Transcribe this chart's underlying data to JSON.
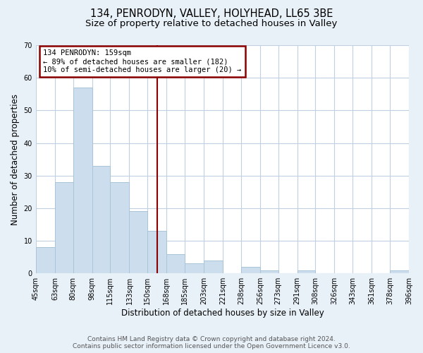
{
  "title": "134, PENRODYN, VALLEY, HOLYHEAD, LL65 3BE",
  "subtitle": "Size of property relative to detached houses in Valley",
  "xlabel": "Distribution of detached houses by size in Valley",
  "ylabel": "Number of detached properties",
  "bins": [
    45,
    63,
    80,
    98,
    115,
    133,
    150,
    168,
    185,
    203,
    221,
    238,
    256,
    273,
    291,
    308,
    326,
    343,
    361,
    378,
    396
  ],
  "bin_labels": [
    "45sqm",
    "63sqm",
    "80sqm",
    "98sqm",
    "115sqm",
    "133sqm",
    "150sqm",
    "168sqm",
    "185sqm",
    "203sqm",
    "221sqm",
    "238sqm",
    "256sqm",
    "273sqm",
    "291sqm",
    "308sqm",
    "326sqm",
    "343sqm",
    "361sqm",
    "378sqm",
    "396sqm"
  ],
  "counts": [
    8,
    28,
    57,
    33,
    28,
    19,
    13,
    6,
    3,
    4,
    0,
    2,
    1,
    0,
    1,
    0,
    0,
    0,
    0,
    1
  ],
  "bar_color": "#ccdded",
  "bar_edge_color": "#aac4d8",
  "vline_x": 159,
  "vline_color": "#8b0000",
  "annotation_title": "134 PENRODYN: 159sqm",
  "annotation_line1": "← 89% of detached houses are smaller (182)",
  "annotation_line2": "10% of semi-detached houses are larger (20) →",
  "annotation_box_color": "#8b0000",
  "annotation_bg": "#ffffff",
  "ylim": [
    0,
    70
  ],
  "yticks": [
    0,
    10,
    20,
    30,
    40,
    50,
    60,
    70
  ],
  "footer1": "Contains HM Land Registry data © Crown copyright and database right 2024.",
  "footer2": "Contains public sector information licensed under the Open Government Licence v3.0.",
  "bg_color": "#e8f0f8",
  "plot_bg_color": "#ffffff",
  "grid_color": "#c0d0e0",
  "title_fontsize": 10.5,
  "subtitle_fontsize": 9.5,
  "axis_label_fontsize": 8.5,
  "tick_fontsize": 7,
  "footer_fontsize": 6.5
}
